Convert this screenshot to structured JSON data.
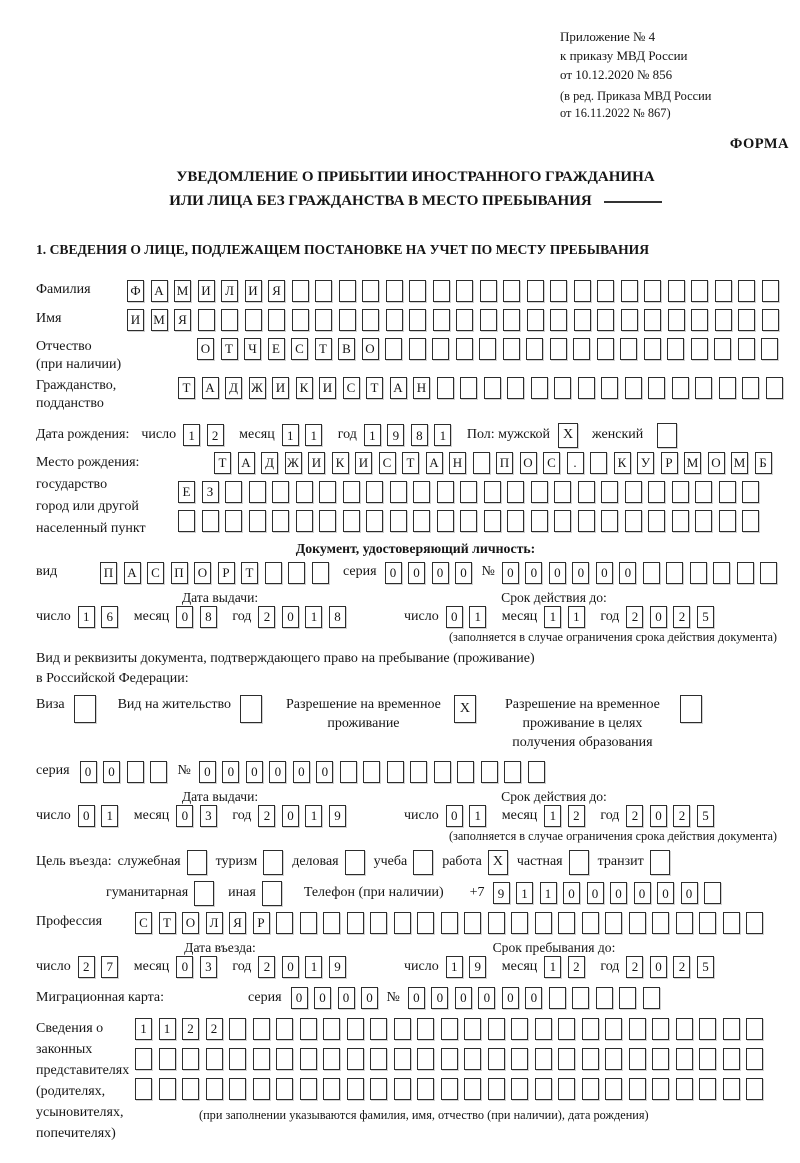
{
  "checkbox_mark": "X",
  "header": {
    "annex1": "Приложение № 4",
    "annex2": "к приказу МВД России",
    "annex3": "от 10.12.2020 № 856",
    "note1": "(в ред. Приказа МВД России",
    "note2": "от 16.11.2022 № 867)",
    "forma": "ФОРМА"
  },
  "title": {
    "line1": "УВЕДОМЛЕНИЕ О ПРИБЫТИИ ИНОСТРАННОГО ГРАЖДАНИНА",
    "line2": "ИЛИ ЛИЦА БЕЗ ГРАЖДАНСТВА В МЕСТО ПРЕБЫВАНИЯ"
  },
  "section1": "1. СВЕДЕНИЯ О ЛИЦЕ, ПОДЛЕЖАЩЕМ ПОСТАНОВКЕ НА УЧЕТ ПО МЕСТУ ПРЕБЫВАНИЯ",
  "labels": {
    "day": "число",
    "month": "месяц",
    "year": "год",
    "series": "серия",
    "number": "№",
    "kind": "вид",
    "issue_date": "Дата выдачи:",
    "valid_until": "Срок действия до:",
    "entry_date": "Дата въезда:",
    "stay_until": "Срок пребывания до:"
  },
  "person": {
    "surname": {
      "label": "Фамилия",
      "v": "ФАМИЛИЯ",
      "n": 28
    },
    "name": {
      "label": "Имя",
      "v": "ИМЯ",
      "n": 28
    },
    "patronymic": {
      "label1": "Отчество",
      "label2": "(при наличии)",
      "v": "ОТЧЕСТВО",
      "n": 25
    },
    "citizenship": {
      "label1": "Гражданство,",
      "label2": "подданство",
      "v": "ТАДЖИКИСТАН",
      "n": 26
    },
    "birth_date": {
      "label": "Дата рождения:",
      "day": {
        "v": "12",
        "n": 2
      },
      "month": {
        "v": "11",
        "n": 2
      },
      "year": {
        "v": "1981",
        "n": 4
      }
    },
    "gender": {
      "male_label": "Пол: мужской",
      "male": true,
      "female_label": "женский",
      "female": false
    },
    "birth_place": {
      "label1": "Место рождения:",
      "label2": "государство",
      "label3": "город или другой",
      "label4": "населенный пункт",
      "row1": {
        "v": "ТАДЖИКИСТАН ПОС. КУРМОМБ",
        "n": 24
      },
      "row2": {
        "v": "ЕЗ",
        "n": 25
      },
      "row3": {
        "v": "",
        "n": 25
      }
    }
  },
  "identity_doc": {
    "heading": "Документ, удостоверяющий личность:",
    "kind": {
      "v": "ПАСПОРТ",
      "n": 10
    },
    "series": {
      "v": "0000",
      "n": 4
    },
    "number": {
      "v": "000000",
      "n": 12
    },
    "issue": {
      "day": {
        "v": "16",
        "n": 2
      },
      "month": {
        "v": "08",
        "n": 2
      },
      "year": {
        "v": "2018",
        "n": 4
      }
    },
    "valid": {
      "day": {
        "v": "01",
        "n": 2
      },
      "month": {
        "v": "11",
        "n": 2
      },
      "year": {
        "v": "2025",
        "n": 4
      }
    },
    "footnote": "(заполняется в случае ограничения срока действия документа)"
  },
  "residence_doc": {
    "intro1": "Вид и реквизиты документа, подтверждающего право на пребывание (проживание)",
    "intro2": "в Российской Федерации:",
    "options": [
      {
        "label": "Виза",
        "checked": false
      },
      {
        "label": "Вид на жительство",
        "checked": false
      },
      {
        "label": "Разрешение на временное проживание",
        "checked": true
      },
      {
        "label": "Разрешение на временное проживание в целях получения образования",
        "checked": false
      }
    ],
    "series": {
      "v": "00",
      "n": 4
    },
    "number": {
      "v": "000000",
      "n": 15
    },
    "issue": {
      "day": {
        "v": "01",
        "n": 2
      },
      "month": {
        "v": "03",
        "n": 2
      },
      "year": {
        "v": "2019",
        "n": 4
      }
    },
    "valid": {
      "day": {
        "v": "01",
        "n": 2
      },
      "month": {
        "v": "12",
        "n": 2
      },
      "year": {
        "v": "2025",
        "n": 4
      }
    },
    "footnote": "(заполняется в случае ограничения срока действия документа)"
  },
  "visit": {
    "purpose_label": "Цель въезда:",
    "purposes": [
      {
        "label": "служебная",
        "checked": false
      },
      {
        "label": "туризм",
        "checked": false
      },
      {
        "label": "деловая",
        "checked": false
      },
      {
        "label": "учеба",
        "checked": false
      },
      {
        "label": "работа",
        "checked": true
      },
      {
        "label": "частная",
        "checked": false
      },
      {
        "label": "транзит",
        "checked": false
      },
      {
        "label": "гуманитарная",
        "checked": false
      },
      {
        "label": "иная",
        "checked": false
      }
    ],
    "phone_label": "Телефон (при наличии)",
    "phone_prefix": "+7",
    "phone": {
      "v": "911000000",
      "n": 10
    },
    "profession": {
      "label": "Профессия",
      "v": "СТОЛЯР",
      "n": 27
    },
    "entry": {
      "day": {
        "v": "27",
        "n": 2
      },
      "month": {
        "v": "03",
        "n": 2
      },
      "year": {
        "v": "2019",
        "n": 4
      }
    },
    "stay": {
      "day": {
        "v": "19",
        "n": 2
      },
      "month": {
        "v": "12",
        "n": 2
      },
      "year": {
        "v": "2025",
        "n": 4
      }
    },
    "migration_card": {
      "label": "Миграционная карта:",
      "series": {
        "v": "0000",
        "n": 4
      },
      "number": {
        "v": "000000",
        "n": 11
      }
    },
    "representatives": {
      "l1": "Сведения о",
      "l2": "законных",
      "l3": "представителях",
      "l4": "(родителях,",
      "l5": "усыновителях,",
      "l6": "попечителях)",
      "row1": {
        "v": "1122",
        "n": 27
      },
      "row2": {
        "v": "",
        "n": 27
      },
      "row3": {
        "v": "",
        "n": 27
      },
      "footnote": "(при заполнении указываются фамилия, имя, отчество (при наличии), дата рождения)"
    }
  }
}
